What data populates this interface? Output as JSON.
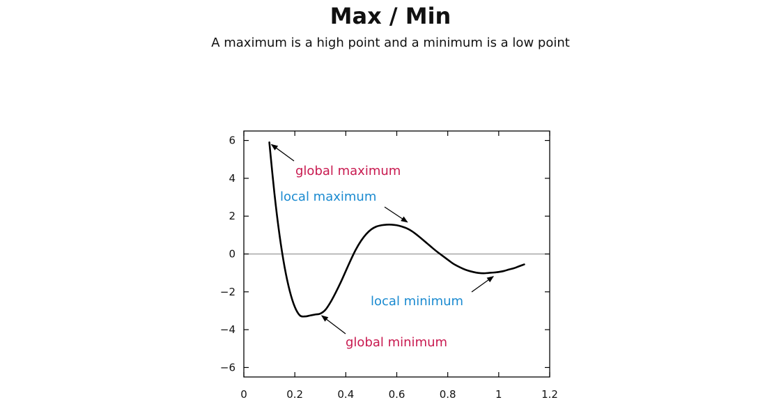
{
  "header": {
    "title": "Max / Min",
    "subtitle": "A maximum is a high point and a minimum is a low point"
  },
  "colors": {
    "curve": "#000000",
    "zero_line": "#999999",
    "global_annotation": "#c8194f",
    "local_annotation": "#1a8ad0"
  },
  "chart_data": {
    "type": "line",
    "title": "",
    "xlabel": "",
    "ylabel": "",
    "xlim": [
      0,
      1.2
    ],
    "ylim": [
      -6.5,
      6.5
    ],
    "xticks": [
      0,
      0.2,
      0.4,
      0.6,
      0.8,
      1,
      1.2
    ],
    "xtick_labels": [
      "0",
      "0.2",
      "0.4",
      "0.6",
      "0.8",
      "1",
      "1.2"
    ],
    "yticks": [
      -6,
      -4,
      -2,
      0,
      2,
      4,
      6
    ],
    "ytick_labels": [
      "−6",
      "−4",
      "−2",
      "0",
      "2",
      "4",
      "6"
    ],
    "grid": false,
    "zero_line": true,
    "series": [
      {
        "x": [
          0.1,
          0.12,
          0.14,
          0.16,
          0.18,
          0.2,
          0.22,
          0.24,
          0.26,
          0.28,
          0.3,
          0.32,
          0.34,
          0.36,
          0.38,
          0.4,
          0.42,
          0.44,
          0.46,
          0.48,
          0.5,
          0.52,
          0.54,
          0.56,
          0.58,
          0.6,
          0.62,
          0.64,
          0.66,
          0.68,
          0.7,
          0.72,
          0.74,
          0.76,
          0.78,
          0.8,
          0.82,
          0.84,
          0.86,
          0.88,
          0.9,
          0.92,
          0.94,
          0.96,
          0.98,
          1.0,
          1.02,
          1.04,
          1.06,
          1.08,
          1.1
        ],
        "y": [
          5.9,
          3.2,
          1.0,
          -0.7,
          -1.95,
          -2.8,
          -3.25,
          -3.3,
          -3.25,
          -3.2,
          -3.15,
          -2.95,
          -2.55,
          -2.05,
          -1.5,
          -0.9,
          -0.3,
          0.25,
          0.7,
          1.05,
          1.3,
          1.45,
          1.52,
          1.55,
          1.55,
          1.52,
          1.45,
          1.35,
          1.2,
          1.0,
          0.78,
          0.55,
          0.32,
          0.1,
          -0.1,
          -0.3,
          -0.5,
          -0.65,
          -0.78,
          -0.88,
          -0.95,
          -1.0,
          -1.02,
          -1.0,
          -0.98,
          -0.95,
          -0.9,
          -0.82,
          -0.75,
          -0.65,
          -0.55
        ]
      }
    ],
    "annotations": [
      {
        "text": "global maximum",
        "x": 0.1,
        "y": 5.9,
        "kind": "global"
      },
      {
        "text": "local maximum",
        "x": 0.65,
        "y": 1.5,
        "kind": "local"
      },
      {
        "text": "global minimum",
        "x": 0.3,
        "y": -3.15,
        "kind": "global"
      },
      {
        "text": "local minimum",
        "x": 0.99,
        "y": -1.0,
        "kind": "local"
      }
    ]
  }
}
